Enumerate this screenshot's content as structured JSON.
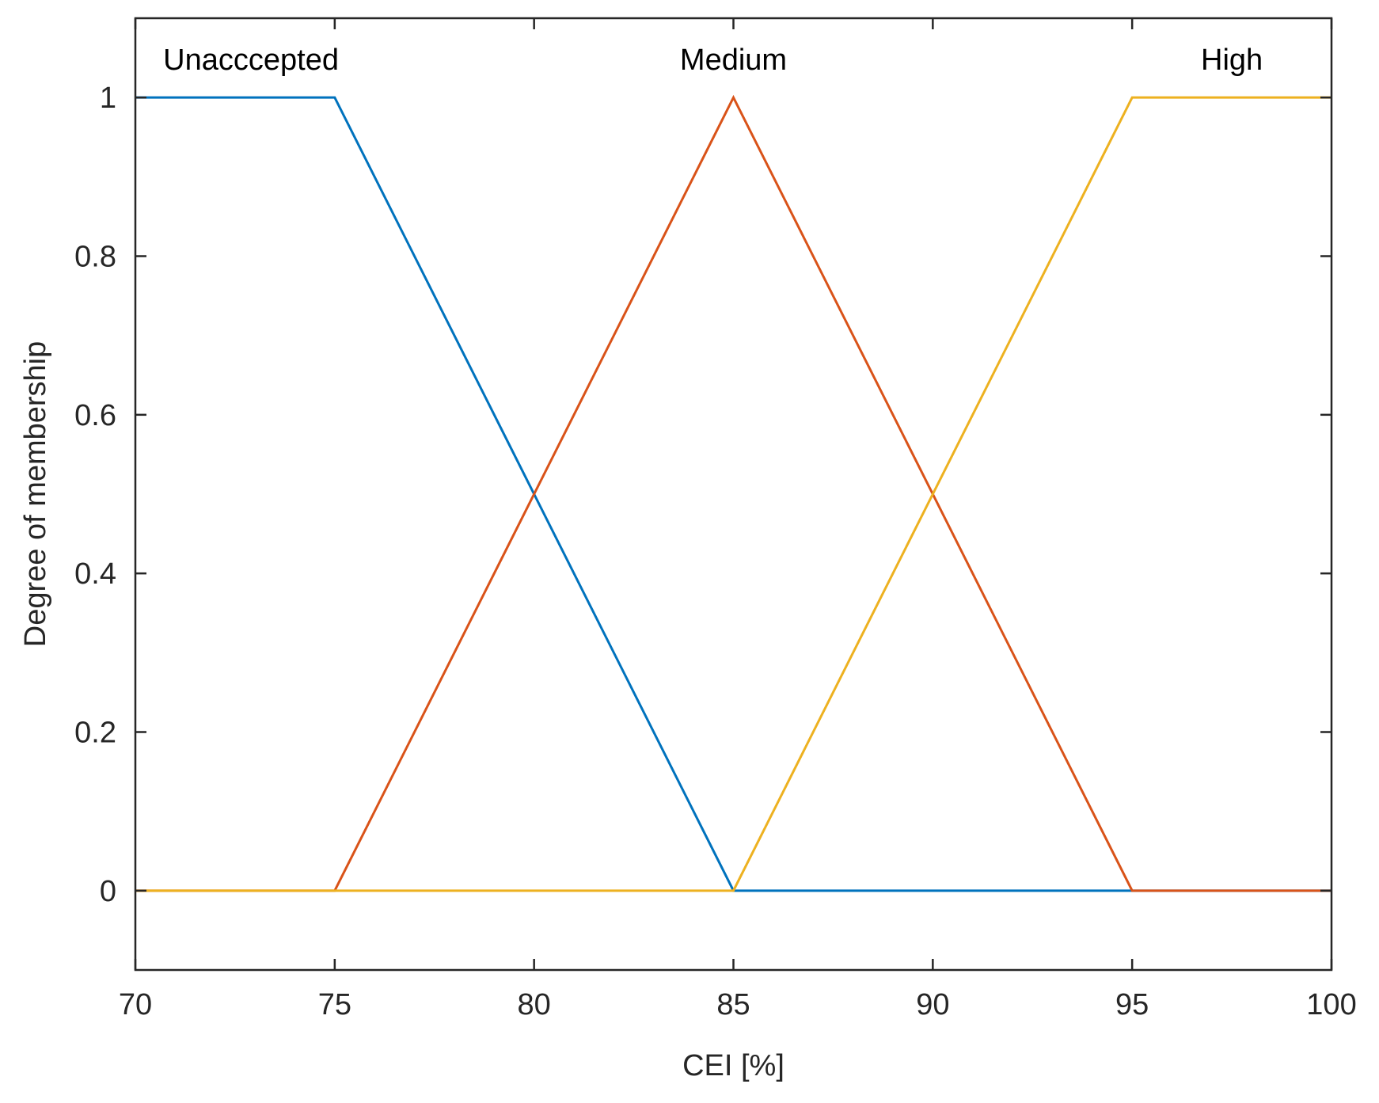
{
  "chart_data": {
    "type": "line",
    "title": "",
    "xlabel": "CEI [%]",
    "ylabel": "Degree of membership",
    "xlim": [
      70,
      100
    ],
    "ylim": [
      -0.1,
      1.1
    ],
    "xticks": [
      70,
      75,
      80,
      85,
      90,
      95,
      100
    ],
    "xtick_labels": [
      "70",
      "75",
      "80",
      "85",
      "90",
      "95",
      "100"
    ],
    "yticks": [
      0,
      0.2,
      0.4,
      0.6,
      0.8,
      1
    ],
    "ytick_labels": [
      "0",
      "0.2",
      "0.4",
      "0.6",
      "0.8",
      "1"
    ],
    "grid": false,
    "series": [
      {
        "name": "Unacccepted",
        "label": "Unacccepted",
        "color": "#0072BD",
        "x": [
          70,
          75,
          85,
          100
        ],
        "y": [
          1,
          1,
          0,
          0
        ]
      },
      {
        "name": "Medium",
        "label": "Medium",
        "color": "#D95319",
        "x": [
          70,
          75,
          85,
          95,
          100
        ],
        "y": [
          0,
          0,
          1,
          0,
          0
        ]
      },
      {
        "name": "High",
        "label": "High",
        "color": "#EDB120",
        "x": [
          70,
          85,
          95,
          100
        ],
        "y": [
          0,
          0,
          1,
          1
        ]
      }
    ],
    "annotations": [
      {
        "text": "Unacccepted",
        "x": 72.9,
        "y": 1.048,
        "align": "middle"
      },
      {
        "text": "Medium",
        "x": 85.0,
        "y": 1.048,
        "align": "middle"
      },
      {
        "text": "High",
        "x": 97.5,
        "y": 1.048,
        "align": "middle"
      }
    ]
  }
}
